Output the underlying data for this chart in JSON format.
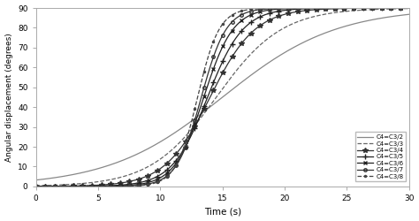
{
  "title": "",
  "xlabel": "Time (s)",
  "ylabel": "Angular displacement (degrees)",
  "xlim": [
    0,
    30
  ],
  "ylim": [
    0,
    90
  ],
  "xticks": [
    0,
    5,
    10,
    15,
    20,
    25,
    30
  ],
  "yticks": [
    0,
    10,
    20,
    30,
    40,
    50,
    60,
    70,
    80,
    90
  ],
  "curve_params": [
    {
      "k": 0.22,
      "t0": 15.0,
      "label": "C4=C3/2",
      "linestyle": "-",
      "marker": null,
      "color": "#888888",
      "lw": 0.9
    },
    {
      "k": 0.38,
      "t0": 14.5,
      "label": "C4=C3/3",
      "linestyle": "--",
      "marker": null,
      "color": "#666666",
      "lw": 0.9
    },
    {
      "k": 0.55,
      "t0": 14.0,
      "label": "C4=C3/4",
      "linestyle": "-",
      "marker": "o",
      "color": "#333333",
      "lw": 0.9
    },
    {
      "k": 0.7,
      "t0": 13.8,
      "label": "C4=C3/5",
      "linestyle": "-",
      "marker": "+",
      "color": "#222222",
      "lw": 0.9
    },
    {
      "k": 0.85,
      "t0": 13.5,
      "label": "C4=C3/6",
      "linestyle": "-",
      "marker": "x",
      "color": "#222222",
      "lw": 0.9
    },
    {
      "k": 1.0,
      "t0": 13.3,
      "label": "C4=C3/7",
      "linestyle": "-",
      "marker": "o",
      "color": "#333333",
      "lw": 0.9
    },
    {
      "k": 1.15,
      "t0": 13.0,
      "label": "C4=C3/8",
      "linestyle": "--",
      "marker": ".",
      "color": "#444444",
      "lw": 0.9
    }
  ],
  "amplitude": 90,
  "background_color": "#ffffff",
  "fig_width": 4.74,
  "fig_height": 2.5,
  "dpi": 100,
  "markevery": 15,
  "markersize": 3
}
